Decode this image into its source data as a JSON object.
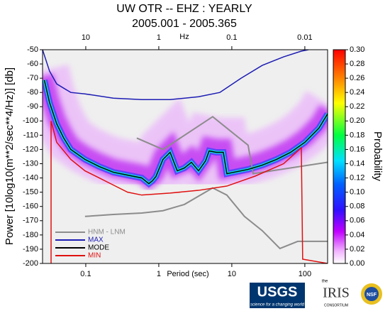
{
  "chart_data": {
    "type": "line",
    "title": "UW OTR -- EHZ : YEARLY",
    "subtitle": "2005.001 - 2005.365",
    "xlabel": "Period (sec)",
    "ylabel": "Power [10log10(m**2/sec**4/Hz)] [db]",
    "x2label": "Hz",
    "log_x": true,
    "xlim": [
      0.0256,
      205
    ],
    "xticks": [
      0.1,
      1,
      10,
      100
    ],
    "x2ticks": [
      10,
      1,
      0.1,
      0.01
    ],
    "ylim": [
      -200,
      -50
    ],
    "yticks": [
      -50,
      -60,
      -70,
      -80,
      -90,
      -100,
      -110,
      -120,
      -130,
      -140,
      -150,
      -160,
      -170,
      -180,
      -190,
      -200
    ],
    "legend": "lower left",
    "series": [
      {
        "name": "HNM - LNM",
        "color": "#8c8c8c",
        "x": [
          0.0976,
          0.239,
          0.585,
          1.14,
          2.24,
          5.47,
          8.55,
          14.9,
          26.1,
          45.6,
          79.9,
          205,
          205,
          0.5,
          1.14,
          5.47,
          16.7,
          19.6,
          205
        ],
        "values": [
          -167,
          -165.6,
          -164.6,
          -163,
          -158.6,
          -147,
          -152,
          -167,
          -177,
          -189.5,
          -184.5,
          -184.5,
          null,
          -112,
          -120,
          -97,
          -117,
          -137,
          -129
        ]
      },
      {
        "name": "MAX",
        "color": "#1c1cb4",
        "x": [
          0.0256,
          0.0319,
          0.04,
          0.0499,
          0.0624,
          0.0976,
          0.239,
          0.585,
          1.43,
          3.5,
          6.85,
          13.4,
          26.1,
          51.2,
          89.5,
          112
        ],
        "values": [
          -50,
          -65,
          -74,
          -77,
          -80,
          -81,
          -84,
          -85,
          -85,
          -83,
          -80,
          -70,
          -61,
          -55,
          -51,
          -50
        ]
      },
      {
        "name": "MODE",
        "color": "#000000",
        "x": [
          0.0271,
          0.0319,
          0.04,
          0.0499,
          0.0624,
          0.0976,
          0.153,
          0.239,
          0.374,
          0.585,
          0.731,
          0.818,
          0.914,
          1.14,
          1.43,
          1.79,
          2.24,
          2.8,
          3.5,
          4.37,
          4.89,
          6.12,
          7.65,
          8.55,
          10.7,
          16.7,
          26.1,
          40.8,
          63.9,
          100,
          156,
          205
        ],
        "values": [
          -71.4,
          -87,
          -102,
          -112,
          -120,
          -127,
          -132,
          -136,
          -138,
          -140,
          -144,
          -142,
          -139,
          -127,
          -122,
          -135,
          -133,
          -129,
          -135,
          -128,
          -121,
          -122,
          -122,
          -137,
          -136,
          -134,
          -131,
          -127,
          -122,
          -115,
          -105,
          -95
        ]
      },
      {
        "name": "MIN",
        "color": "#e01010",
        "x": [
          0.0335,
          0.0335,
          0.04,
          0.0624,
          0.0976,
          0.153,
          0.239,
          0.374,
          0.585,
          1.43,
          3.5,
          8.55,
          20.9,
          51.2,
          89.5,
          93.4,
          205
        ],
        "values": [
          -200,
          -100,
          -115,
          -127,
          -135,
          -140,
          -145,
          -150,
          -152,
          -150.6,
          -148.7,
          -145.7,
          -138.7,
          -130,
          -118.8,
          -197,
          -200
        ]
      }
    ],
    "colorbar": {
      "label": "Probability",
      "lim": [
        0,
        0.3
      ],
      "ticks": [
        {
          "value": 0,
          "label": "0.00"
        },
        {
          "value": 0.02,
          "label": "0.02"
        },
        {
          "value": 0.04,
          "label": "0.04"
        },
        {
          "value": 0.06,
          "label": "0.06"
        },
        {
          "value": 0.08,
          "label": "0.08"
        },
        {
          "value": 0.1,
          "label": "0.10"
        },
        {
          "value": 0.12,
          "label": "0.12"
        },
        {
          "value": 0.14,
          "label": "0.14"
        },
        {
          "value": 0.16,
          "label": "0.16"
        },
        {
          "value": 0.18,
          "label": "0.18"
        },
        {
          "value": 0.2,
          "label": "0.20"
        },
        {
          "value": 0.22,
          "label": "0.22"
        },
        {
          "value": 0.24,
          "label": "0.24"
        },
        {
          "value": 0.26,
          "label": "0.26"
        },
        {
          "value": 0.28,
          "label": "0.28"
        },
        {
          "value": 0.3,
          "label": "0.30"
        }
      ]
    }
  },
  "logos": {
    "usgs": "USGS",
    "usgs_tagline": "science for a changing world",
    "iris_top": "the",
    "iris": "IRIS",
    "iris_bottom": "CONSORTIUM",
    "nsf": "NSF"
  }
}
